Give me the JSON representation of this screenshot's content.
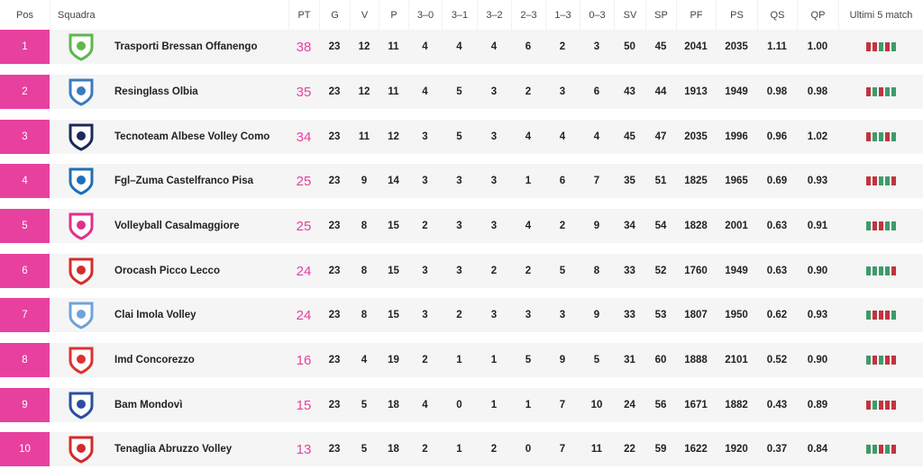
{
  "columns": [
    "Pos",
    "Squadra",
    "PT",
    "G",
    "V",
    "P",
    "3–0",
    "3–1",
    "3–2",
    "2–3",
    "1–3",
    "0–3",
    "SV",
    "SP",
    "PF",
    "PS",
    "QS",
    "QP",
    "Ultimi 5 match"
  ],
  "colors": {
    "accent": "#e8409f",
    "win": "#3f9a6b",
    "loss": "#c0343f"
  },
  "rows": [
    {
      "pos": "1",
      "team": "Trasporti Bressan Offanengo",
      "logo": "volley-offanengo-logo",
      "logo_color": "#5db84a",
      "stats": [
        "38",
        "23",
        "12",
        "11",
        "4",
        "4",
        "4",
        "6",
        "2",
        "3",
        "50",
        "45",
        "2041",
        "2035",
        "1.11",
        "1.00"
      ],
      "form": [
        "L",
        "L",
        "W",
        "L",
        "W"
      ]
    },
    {
      "pos": "2",
      "team": "Resinglass Olbia",
      "logo": "volley-hermaea-olbia-logo",
      "logo_color": "#3a7bbf",
      "stats": [
        "35",
        "23",
        "12",
        "11",
        "4",
        "5",
        "3",
        "2",
        "3",
        "6",
        "43",
        "44",
        "1913",
        "1949",
        "0.98",
        "0.98"
      ],
      "form": [
        "L",
        "W",
        "L",
        "W",
        "W"
      ]
    },
    {
      "pos": "3",
      "team": "Tecnoteam Albese Volley Como",
      "logo": "albese-logo",
      "logo_color": "#1b2a57",
      "stats": [
        "34",
        "23",
        "11",
        "12",
        "3",
        "5",
        "3",
        "4",
        "4",
        "4",
        "45",
        "47",
        "2035",
        "1996",
        "0.96",
        "1.02"
      ],
      "form": [
        "L",
        "W",
        "W",
        "L",
        "W"
      ]
    },
    {
      "pos": "4",
      "team": "Fgl–Zuma Castelfranco Pisa",
      "logo": "castelfranco-logo",
      "logo_color": "#1f6fb5",
      "stats": [
        "25",
        "23",
        "9",
        "14",
        "3",
        "3",
        "3",
        "1",
        "6",
        "7",
        "35",
        "51",
        "1825",
        "1965",
        "0.69",
        "0.93"
      ],
      "form": [
        "L",
        "L",
        "W",
        "W",
        "L"
      ]
    },
    {
      "pos": "5",
      "team": "Volleyball Casalmaggiore",
      "logo": "volleyball-casalmaggiore-logo",
      "logo_color": "#e0308f",
      "stats": [
        "25",
        "23",
        "8",
        "15",
        "2",
        "3",
        "3",
        "4",
        "2",
        "9",
        "34",
        "54",
        "1828",
        "2001",
        "0.63",
        "0.91"
      ],
      "form": [
        "W",
        "L",
        "L",
        "W",
        "W"
      ]
    },
    {
      "pos": "6",
      "team": "Orocash Picco Lecco",
      "logo": "pallavolo-lecco-logo",
      "logo_color": "#d62b2b",
      "stats": [
        "24",
        "23",
        "8",
        "15",
        "3",
        "3",
        "2",
        "2",
        "5",
        "8",
        "33",
        "52",
        "1760",
        "1949",
        "0.63",
        "0.90"
      ],
      "form": [
        "W",
        "W",
        "W",
        "W",
        "L"
      ]
    },
    {
      "pos": "7",
      "team": "Clai Imola Volley",
      "logo": "clai-imola-logo",
      "logo_color": "#6fa3d8",
      "stats": [
        "24",
        "23",
        "8",
        "15",
        "3",
        "2",
        "3",
        "3",
        "3",
        "9",
        "33",
        "53",
        "1807",
        "1950",
        "0.62",
        "0.93"
      ],
      "form": [
        "W",
        "L",
        "L",
        "L",
        "W"
      ]
    },
    {
      "pos": "8",
      "team": "Imd Concorezzo",
      "logo": "pallavolo-concorezzo-logo",
      "logo_color": "#e03030",
      "stats": [
        "16",
        "23",
        "4",
        "19",
        "2",
        "1",
        "1",
        "5",
        "9",
        "5",
        "31",
        "60",
        "1888",
        "2101",
        "0.52",
        "0.90"
      ],
      "form": [
        "W",
        "L",
        "W",
        "L",
        "L"
      ]
    },
    {
      "pos": "9",
      "team": "Bam Mondovì",
      "logo": "mondovi-volley-logo",
      "logo_color": "#2b4fa0",
      "stats": [
        "15",
        "23",
        "5",
        "18",
        "4",
        "0",
        "1",
        "1",
        "7",
        "10",
        "24",
        "56",
        "1671",
        "1882",
        "0.43",
        "0.89"
      ],
      "form": [
        "L",
        "W",
        "L",
        "L",
        "L"
      ]
    },
    {
      "pos": "10",
      "team": "Tenaglia Abruzzo Volley",
      "logo": "altino-volley-logo",
      "logo_color": "#d42a2a",
      "stats": [
        "13",
        "23",
        "5",
        "18",
        "2",
        "1",
        "2",
        "0",
        "7",
        "11",
        "22",
        "59",
        "1622",
        "1920",
        "0.37",
        "0.84"
      ],
      "form": [
        "W",
        "W",
        "L",
        "W",
        "L"
      ]
    }
  ]
}
